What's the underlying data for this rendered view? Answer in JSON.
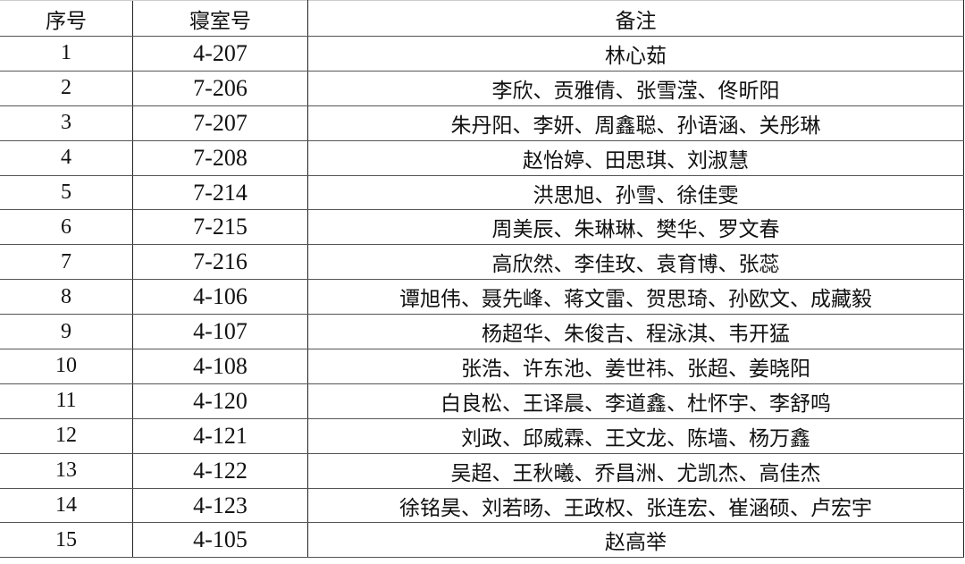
{
  "headers": [
    "序号",
    "寝室号",
    "备注"
  ],
  "rows": [
    {
      "no": "1",
      "room": "4-207",
      "note": "林心茹"
    },
    {
      "no": "2",
      "room": "7-206",
      "note": "李欣、贡雅倩、张雪滢、佟昕阳"
    },
    {
      "no": "3",
      "room": "7-207",
      "note": "朱丹阳、李妍、周鑫聪、孙语涵、关彤琳"
    },
    {
      "no": "4",
      "room": "7-208",
      "note": "赵怡婷、田思琪、刘淑慧"
    },
    {
      "no": "5",
      "room": "7-214",
      "note": "洪思旭、孙雪、徐佳雯"
    },
    {
      "no": "6",
      "room": "7-215",
      "note": "周美辰、朱琳琳、樊华、罗文春"
    },
    {
      "no": "7",
      "room": "7-216",
      "note": "高欣然、李佳玫、袁育博、张蕊"
    },
    {
      "no": "8",
      "room": "4-106",
      "note": "谭旭伟、聂先峰、蒋文雷、贺思琦、孙欧文、成藏毅"
    },
    {
      "no": "9",
      "room": "4-107",
      "note": "杨超华、朱俊吉、程泳淇、韦开猛"
    },
    {
      "no": "10",
      "room": "4-108",
      "note": "张浩、许东池、姜世祎、张超、姜晓阳"
    },
    {
      "no": "11",
      "room": "4-120",
      "note": "白良松、王译晨、李道鑫、杜怀宇、李舒鸣"
    },
    {
      "no": "12",
      "room": "4-121",
      "note": "刘政、邱威霖、王文龙、陈墙、杨万鑫"
    },
    {
      "no": "13",
      "room": "4-122",
      "note": "吴超、王秋曦、乔昌洲、尤凯杰、高佳杰"
    },
    {
      "no": "14",
      "room": "4-123",
      "note": "徐铭昊、刘若旸、王政权、张连宏、崔涵硕、卢宏宇"
    },
    {
      "no": "15",
      "room": "4-105",
      "note": "赵高举"
    }
  ]
}
